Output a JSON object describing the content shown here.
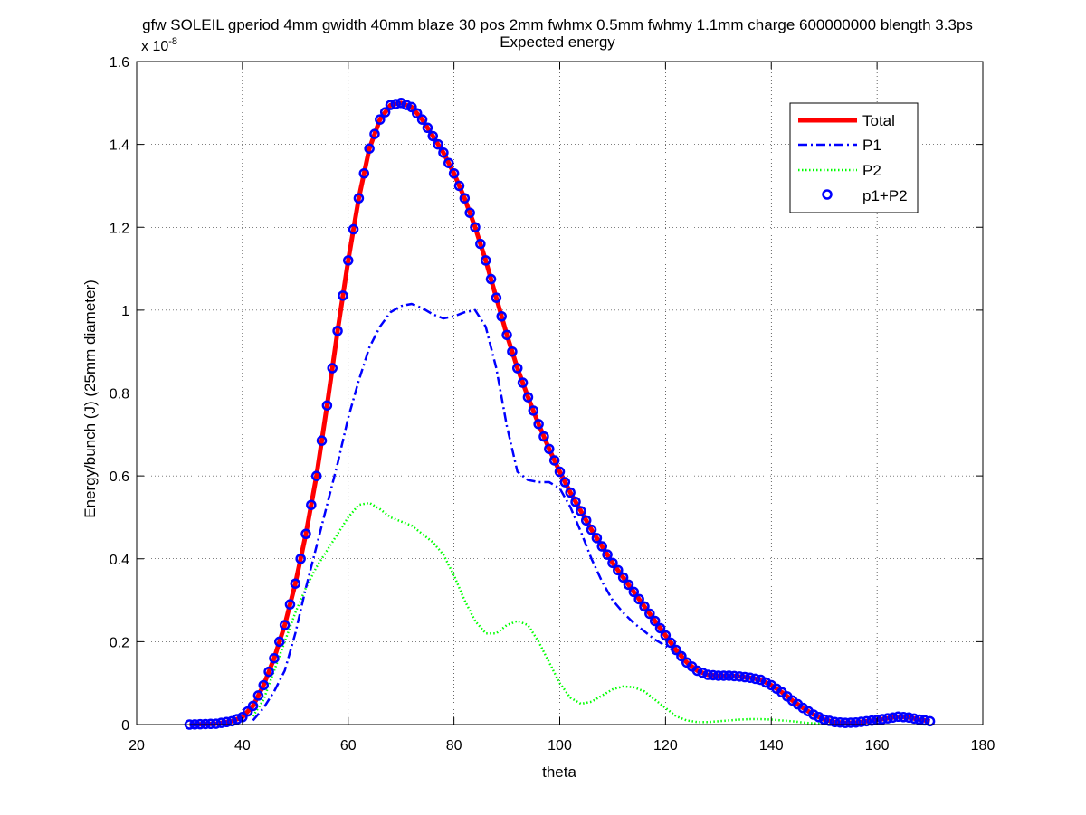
{
  "chart_data": {
    "type": "line",
    "title_line1": "gfw SOLEIL gperiod 4mm gwidth 40mm blaze 30 pos 2mm fwhmx 0.5mm fwhmy 1.1mm charge 600000000 blength 3.3ps",
    "title_line2": "Expected energy",
    "xlabel": "theta",
    "ylabel": "Energy/bunch (J) (25mm diameter)",
    "y_scale_label": "x 10",
    "y_scale_exponent": "-8",
    "xlim": [
      20,
      180
    ],
    "ylim": [
      0,
      1.6
    ],
    "xticks": [
      "20",
      "40",
      "60",
      "80",
      "100",
      "120",
      "140",
      "160",
      "180"
    ],
    "yticks": [
      "0",
      "0.2",
      "0.4",
      "0.6",
      "0.8",
      "1",
      "1.2",
      "1.4",
      "1.6"
    ],
    "xtick_values": [
      20,
      40,
      60,
      80,
      100,
      120,
      140,
      160,
      180
    ],
    "ytick_values": [
      0,
      0.2,
      0.4,
      0.6,
      0.8,
      1.0,
      1.2,
      1.4,
      1.6
    ],
    "grid": true,
    "legend_position": "top-right",
    "series": [
      {
        "name": "Total",
        "style": "solid",
        "color": "#ff0000",
        "x": [
          30,
          35,
          38,
          40,
          42,
          44,
          46,
          48,
          50,
          52,
          54,
          56,
          58,
          60,
          62,
          64,
          66,
          68,
          70,
          72,
          74,
          76,
          78,
          80,
          82,
          84,
          86,
          88,
          90,
          92,
          94,
          96,
          98,
          100,
          102,
          104,
          106,
          108,
          110,
          112,
          114,
          116,
          118,
          120,
          122,
          124,
          126,
          128,
          130,
          132,
          134,
          136,
          138,
          140,
          142,
          144,
          146,
          148,
          150,
          152,
          154,
          156,
          158,
          160,
          162,
          164,
          166,
          168,
          170
        ],
        "y": [
          0.0,
          0.002,
          0.008,
          0.018,
          0.045,
          0.095,
          0.16,
          0.24,
          0.34,
          0.46,
          0.6,
          0.77,
          0.95,
          1.12,
          1.27,
          1.39,
          1.46,
          1.495,
          1.5,
          1.49,
          1.46,
          1.42,
          1.38,
          1.33,
          1.27,
          1.2,
          1.12,
          1.03,
          0.94,
          0.86,
          0.79,
          0.725,
          0.665,
          0.61,
          0.56,
          0.515,
          0.47,
          0.43,
          0.39,
          0.355,
          0.32,
          0.285,
          0.25,
          0.215,
          0.18,
          0.15,
          0.13,
          0.12,
          0.118,
          0.118,
          0.116,
          0.113,
          0.108,
          0.095,
          0.078,
          0.058,
          0.04,
          0.024,
          0.012,
          0.006,
          0.004,
          0.005,
          0.008,
          0.011,
          0.015,
          0.019,
          0.017,
          0.012,
          0.008
        ]
      },
      {
        "name": "P1",
        "style": "dashdot",
        "color": "#0000ff",
        "x": [
          42,
          44,
          46,
          48,
          50,
          52,
          54,
          56,
          58,
          60,
          62,
          64,
          66,
          68,
          70,
          72,
          74,
          76,
          78,
          80,
          82,
          84,
          86,
          88,
          90,
          92,
          94,
          96,
          98,
          100,
          102,
          104,
          106,
          108,
          110,
          112,
          114,
          116,
          118,
          120,
          122,
          124
        ],
        "y": [
          0.01,
          0.04,
          0.08,
          0.13,
          0.22,
          0.33,
          0.43,
          0.53,
          0.63,
          0.74,
          0.83,
          0.91,
          0.96,
          0.995,
          1.01,
          1.015,
          1.005,
          0.99,
          0.98,
          0.985,
          0.995,
          1.0,
          0.96,
          0.86,
          0.72,
          0.61,
          0.59,
          0.585,
          0.585,
          0.57,
          0.525,
          0.465,
          0.4,
          0.345,
          0.3,
          0.27,
          0.245,
          0.225,
          0.205,
          0.19,
          0.175,
          0.165
        ]
      },
      {
        "name": "P2",
        "style": "dotted",
        "color": "#00ff00",
        "x": [
          42,
          44,
          46,
          48,
          50,
          52,
          54,
          56,
          58,
          60,
          62,
          64,
          66,
          68,
          70,
          72,
          74,
          76,
          78,
          80,
          82,
          84,
          86,
          88,
          90,
          92,
          94,
          96,
          98,
          100,
          102,
          104,
          106,
          108,
          110,
          112,
          114,
          116,
          118,
          120,
          122,
          124,
          126,
          128,
          130,
          132,
          134,
          136,
          138,
          140,
          142,
          144,
          146,
          148,
          150,
          152,
          154
        ],
        "y": [
          0.02,
          0.06,
          0.13,
          0.2,
          0.27,
          0.33,
          0.38,
          0.42,
          0.46,
          0.5,
          0.53,
          0.535,
          0.52,
          0.5,
          0.49,
          0.48,
          0.46,
          0.44,
          0.41,
          0.36,
          0.3,
          0.25,
          0.22,
          0.22,
          0.24,
          0.25,
          0.24,
          0.2,
          0.15,
          0.1,
          0.065,
          0.05,
          0.055,
          0.07,
          0.085,
          0.092,
          0.09,
          0.08,
          0.06,
          0.04,
          0.02,
          0.01,
          0.006,
          0.006,
          0.008,
          0.01,
          0.012,
          0.013,
          0.013,
          0.012,
          0.01,
          0.008,
          0.005,
          0.003,
          0.002,
          0.001,
          0.0
        ]
      },
      {
        "name": "p1+P2",
        "style": "circles",
        "color": "#0000ff",
        "marker_from": "Total"
      }
    ]
  }
}
